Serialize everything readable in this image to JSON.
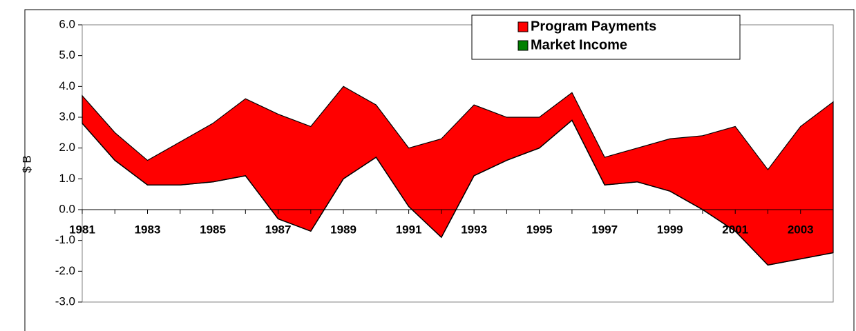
{
  "chart_data": {
    "type": "stacked_area",
    "y_label": "$ B",
    "categories": [
      "1981",
      null,
      "1983",
      null,
      "1985",
      null,
      "1987",
      null,
      "1989",
      null,
      "1991",
      null,
      "1993",
      null,
      "1995",
      null,
      "1997",
      null,
      "1999",
      null,
      "2001",
      null,
      "2003",
      null
    ],
    "series": [
      {
        "name": "Market Income",
        "color": "#008000",
        "values": [
          2.8,
          1.6,
          0.8,
          0.8,
          0.9,
          1.1,
          -0.3,
          -0.7,
          1.0,
          1.7,
          0.1,
          -0.9,
          1.1,
          1.6,
          2.0,
          2.9,
          0.8,
          0.9,
          0.6,
          0.0,
          -0.7,
          -1.8,
          -1.6,
          -1.4
        ]
      },
      {
        "name": "Program Payments",
        "color": "#ff0000",
        "values": [
          0.9,
          0.9,
          0.8,
          1.4,
          1.9,
          2.5,
          3.4,
          3.4,
          3.0,
          1.7,
          1.9,
          3.2,
          2.3,
          1.4,
          1.0,
          0.9,
          0.9,
          1.1,
          1.7,
          2.4,
          3.4,
          3.1,
          4.3,
          4.9
        ]
      }
    ],
    "ylim": [
      -3,
      6
    ],
    "yticks": [
      {
        "value": -3,
        "label": "-3.0"
      },
      {
        "value": -2,
        "label": "-2.0"
      },
      {
        "value": -1,
        "label": "-1.0"
      },
      {
        "value": 0,
        "label": "0.0"
      },
      {
        "value": 1,
        "label": "1.0"
      },
      {
        "value": 2,
        "label": "2.0"
      },
      {
        "value": 3,
        "label": "3.0"
      },
      {
        "value": 4,
        "label": "4.0"
      },
      {
        "value": 5,
        "label": "5.0"
      },
      {
        "value": 6,
        "label": "6.0"
      }
    ],
    "legend": "top-right"
  }
}
